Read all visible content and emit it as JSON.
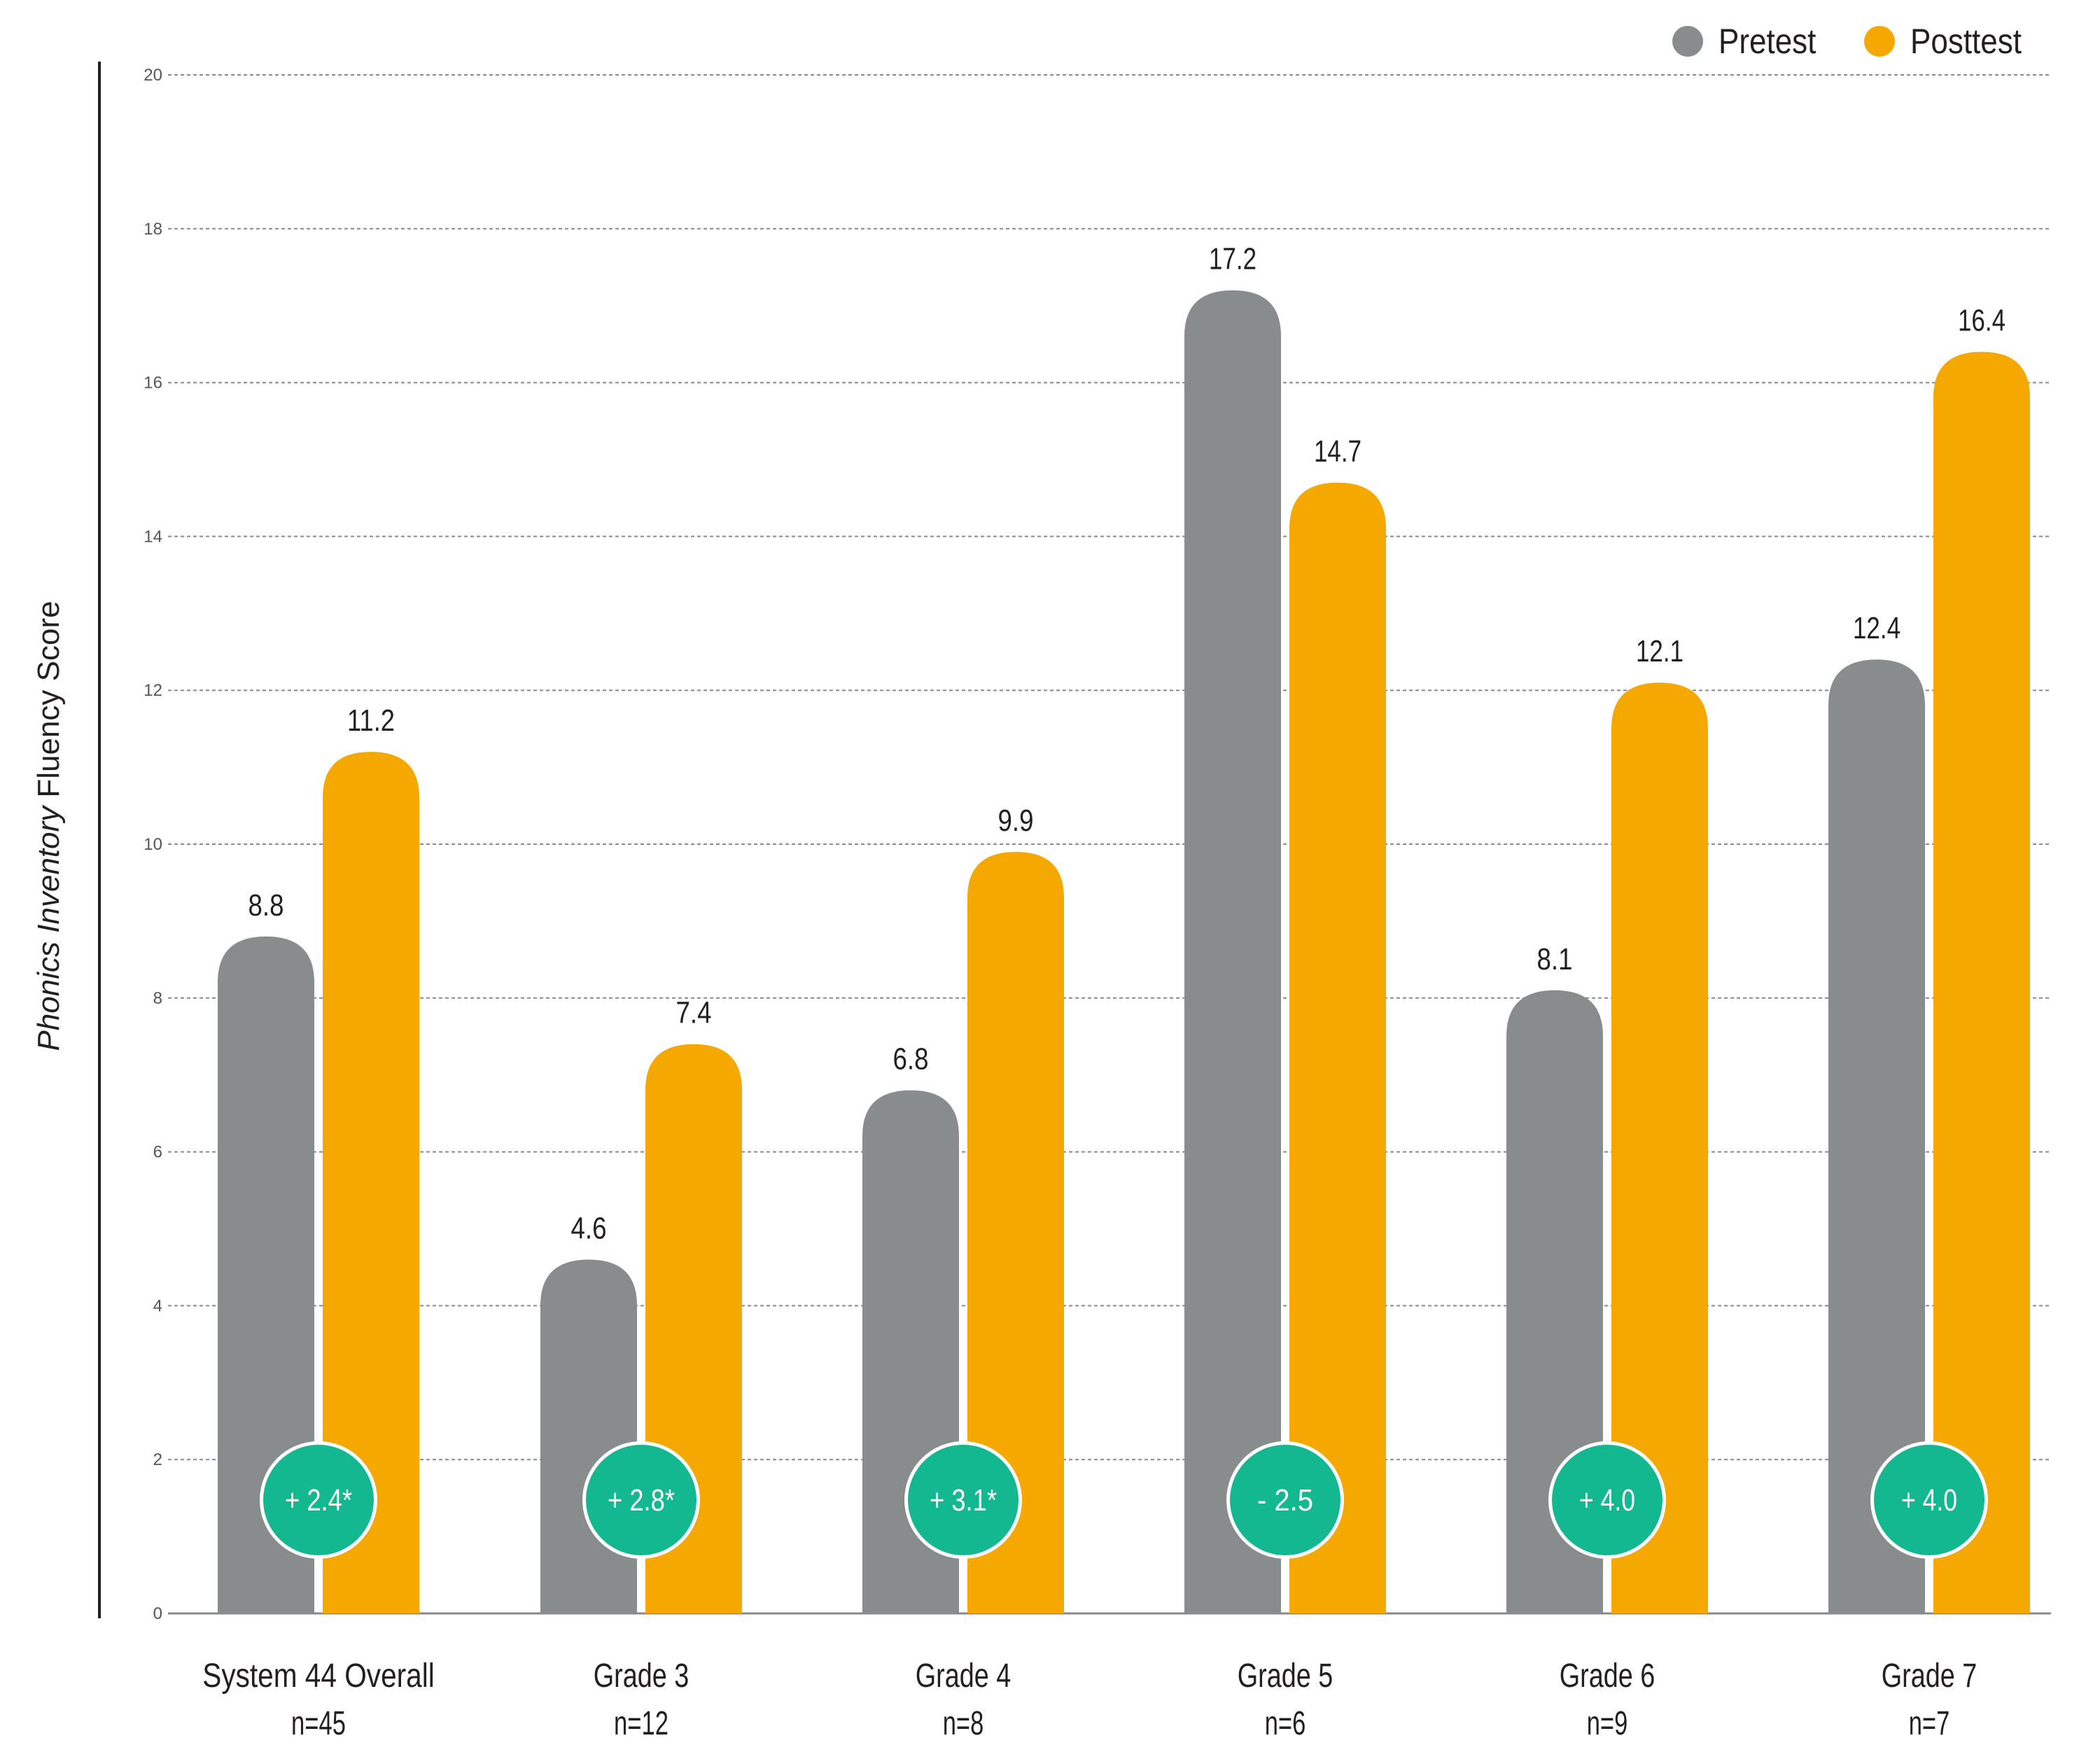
{
  "chart_data": {
    "type": "bar",
    "xlabel": "",
    "ylabel": "Phonics Inventory Fluency Score",
    "ylabel_italic_part": "Phonics Inventory",
    "ylabel_rest": " Fluency Score",
    "ylim": [
      0,
      20
    ],
    "yticks": [
      0,
      2,
      4,
      6,
      8,
      10,
      12,
      14,
      16,
      18,
      20
    ],
    "grid": true,
    "legend_position": "top-right",
    "categories": [
      {
        "name": "System 44 Overall",
        "n": "n=45"
      },
      {
        "name": "Grade 3",
        "n": "n=12"
      },
      {
        "name": "Grade 4",
        "n": "n=8"
      },
      {
        "name": "Grade 5",
        "n": "n=6"
      },
      {
        "name": "Grade 6",
        "n": "n=9"
      },
      {
        "name": "Grade 7",
        "n": "n=7"
      }
    ],
    "series": [
      {
        "name": "Pretest",
        "color": "#898c8c",
        "values": [
          8.8,
          4.6,
          6.8,
          17.2,
          8.1,
          12.4
        ]
      },
      {
        "name": "Posttest",
        "color": "#f5a800",
        "values": [
          11.2,
          7.4,
          9.9,
          14.7,
          12.1,
          16.4
        ]
      }
    ],
    "data_labels": {
      "Pretest": [
        "8.8",
        "4.6",
        "6.8",
        "17.2",
        "8.1",
        "12.4"
      ],
      "Posttest": [
        "11.2",
        "7.4",
        "9.9",
        "14.7",
        "12.1",
        "16.4"
      ]
    },
    "change_badges": [
      "+ 2.4*",
      "+ 2.8*",
      "+ 3.1*",
      "- 2.5",
      "+ 4.0",
      "+ 4.0"
    ],
    "badge_color": "#14b890"
  }
}
